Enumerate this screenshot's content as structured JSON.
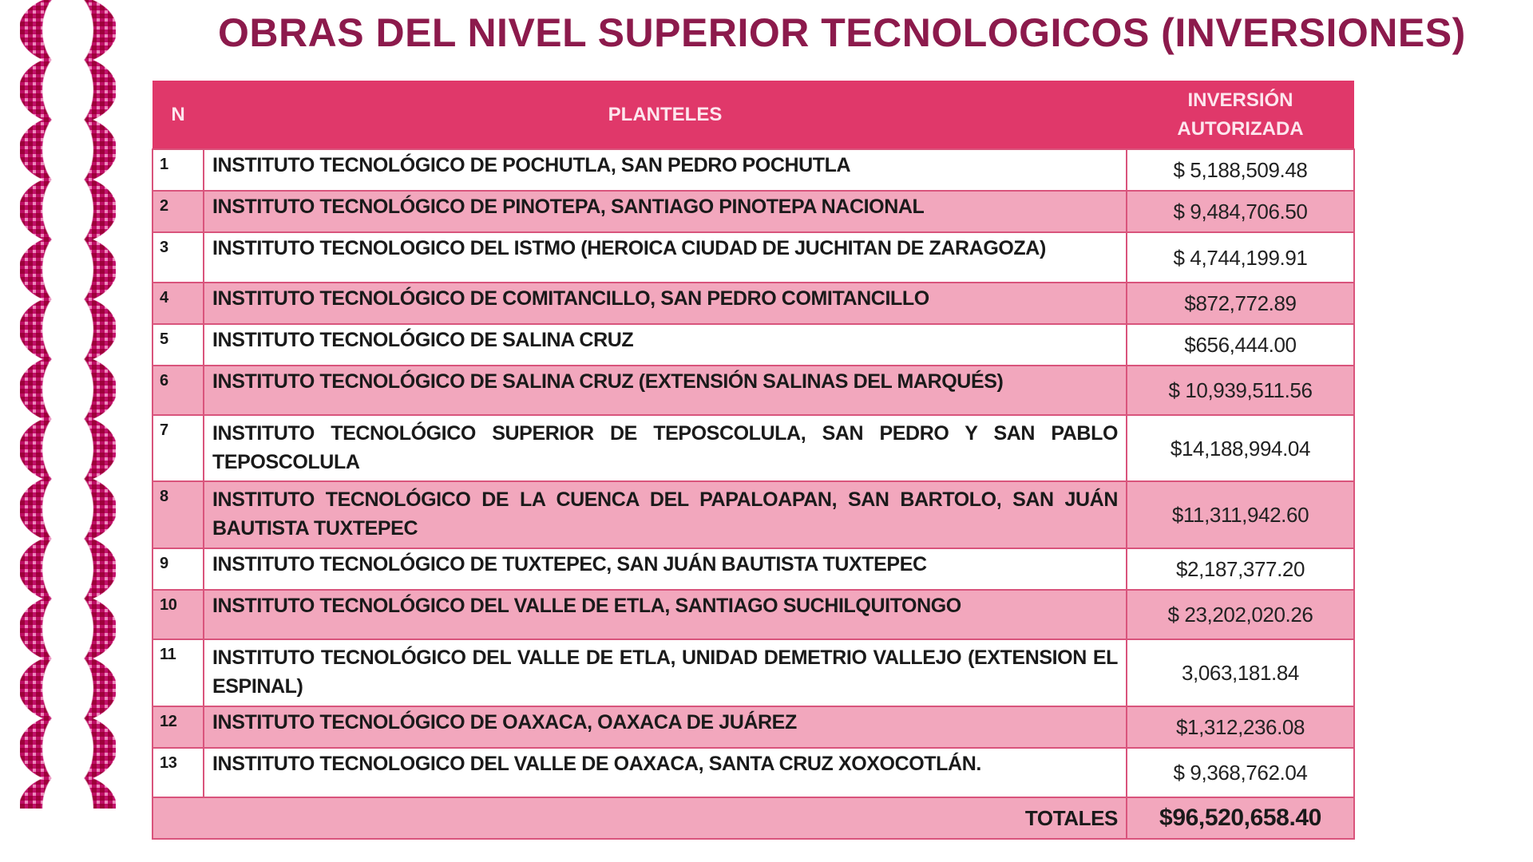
{
  "title": "OBRAS DEL NIVEL SUPERIOR TECNOLOGICOS (INVERSIONES)",
  "colors": {
    "header": "#e0386a",
    "title": "#8c1a4c",
    "row_alt": "#f2a7bd",
    "pattern": "#c8157a"
  },
  "table": {
    "headers": {
      "n": "N",
      "planteles": "PLANTELES",
      "inversion": "INVERSIÓN AUTORIZADA"
    },
    "rows": [
      {
        "n": "1",
        "plantel": "INSTITUTO TECNOLÓGICO DE POCHUTLA, SAN PEDRO POCHUTLA",
        "inversion": "$ 5,188,509.48"
      },
      {
        "n": "2",
        "plantel": "INSTITUTO TECNOLÓGICO DE PINOTEPA, SANTIAGO PINOTEPA NACIONAL",
        "inversion": "$ 9,484,706.50"
      },
      {
        "n": "3",
        "plantel": "INSTITUTO TECNOLOGICO DEL ISTMO (HEROICA CIUDAD DE JUCHITAN DE ZARAGOZA)",
        "inversion": "$ 4,744,199.91"
      },
      {
        "n": "4",
        "plantel": "INSTITUTO TECNOLÓGICO DE COMITANCILLO, SAN PEDRO COMITANCILLO",
        "inversion": "$872,772.89"
      },
      {
        "n": "5",
        "plantel": "INSTITUTO TECNOLÓGICO DE SALINA CRUZ",
        "inversion": "$656,444.00"
      },
      {
        "n": "6",
        "plantel": "INSTITUTO TECNOLÓGICO DE SALINA CRUZ (EXTENSIÓN SALINAS DEL MARQUÉS)",
        "inversion": "$ 10,939,511.56"
      },
      {
        "n": "7",
        "plantel": "INSTITUTO TECNOLÓGICO SUPERIOR DE TEPOSCOLULA, SAN PEDRO Y SAN PABLO TEPOSCOLULA",
        "inversion": "$14,188,994.04"
      },
      {
        "n": "8",
        "plantel": "INSTITUTO TECNOLÓGICO DE LA CUENCA DEL PAPALOAPAN, SAN BARTOLO, SAN JUÁN BAUTISTA TUXTEPEC",
        "inversion": "$11,311,942.60"
      },
      {
        "n": "9",
        "plantel": "INSTITUTO TECNOLÓGICO DE TUXTEPEC, SAN JUÁN BAUTISTA TUXTEPEC",
        "inversion": "$2,187,377.20"
      },
      {
        "n": "10",
        "plantel": "INSTITUTO TECNOLÓGICO DEL VALLE DE ETLA, SANTIAGO SUCHILQUITONGO",
        "inversion": "$ 23,202,020.26"
      },
      {
        "n": "11",
        "plantel": "INSTITUTO TECNOLÓGICO DEL VALLE DE ETLA, UNIDAD DEMETRIO VALLEJO (EXTENSION EL ESPINAL)",
        "inversion": "3,063,181.84"
      },
      {
        "n": "12",
        "plantel": "INSTITUTO TECNOLÓGICO DE OAXACA, OAXACA DE JUÁREZ",
        "inversion": "$1,312,236.08"
      },
      {
        "n": "13",
        "plantel": "INSTITUTO TECNOLOGICO DEL VALLE DE OAXACA, SANTA CRUZ XOXOCOTLÁN.",
        "inversion": "$ 9,368,762.04"
      }
    ],
    "totals": {
      "label": "TOTALES",
      "value": "$96,520,658.40"
    }
  }
}
